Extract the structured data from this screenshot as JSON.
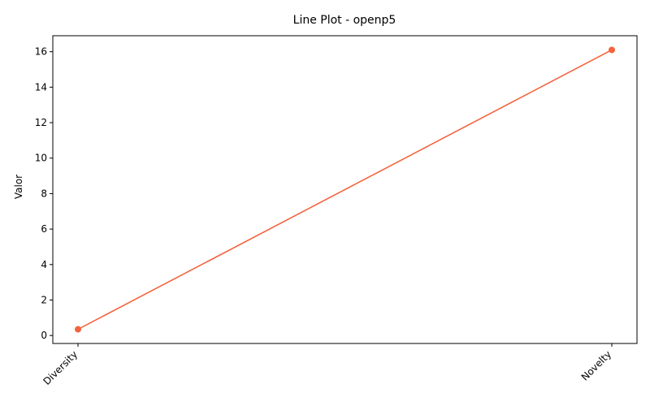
{
  "chart_data": {
    "type": "line",
    "title": "Line Plot - openp5",
    "xlabel": "",
    "ylabel": "Valor",
    "categories": [
      "Diversity",
      "Novelty"
    ],
    "series": [
      {
        "values": [
          0.35,
          16.1
        ],
        "color": "#f4633d"
      }
    ],
    "ylim": [
      -0.45,
      16.9
    ],
    "yticks": [
      0,
      2,
      4,
      6,
      8,
      10,
      12,
      14,
      16
    ],
    "grid": false,
    "x_tick_rotation_deg": 45
  }
}
